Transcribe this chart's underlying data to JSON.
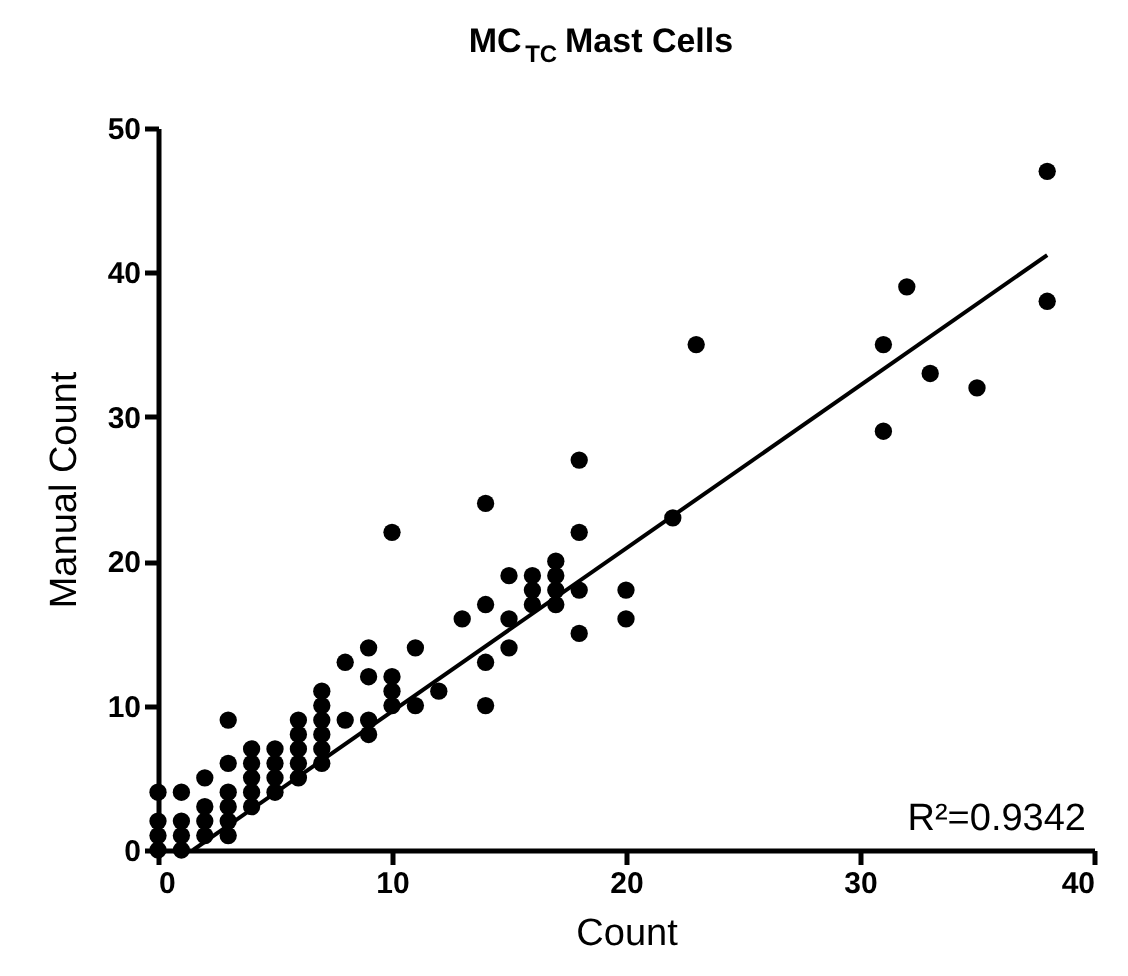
{
  "chart_data": {
    "type": "scatter",
    "title": "MC$_{TC}$ Mast Cells",
    "xlabel": "Count",
    "ylabel": "Manual Count",
    "xlim": [
      0,
      40
    ],
    "ylim": [
      0,
      50
    ],
    "xticks": [
      0,
      10,
      20,
      30,
      40
    ],
    "yticks": [
      0,
      10,
      20,
      30,
      40,
      50
    ],
    "marker": "circle",
    "annotations": [
      "R²=0.9342"
    ],
    "series": [
      {
        "color": "#000000",
        "x": [
          0,
          0,
          0,
          0,
          1,
          1,
          1,
          1,
          2,
          2,
          2,
          2,
          3,
          3,
          3,
          3,
          3,
          3,
          4,
          4,
          4,
          4,
          4,
          5,
          5,
          5,
          5,
          6,
          6,
          6,
          6,
          6,
          7,
          7,
          7,
          7,
          7,
          7,
          8,
          8,
          9,
          9,
          9,
          9,
          10,
          10,
          10,
          10,
          11,
          11,
          12,
          13,
          14,
          14,
          14,
          14,
          15,
          15,
          15,
          16,
          16,
          16,
          17,
          17,
          17,
          17,
          18,
          18,
          18,
          18,
          20,
          20,
          22,
          23,
          31,
          31,
          32,
          33,
          35,
          38,
          38
        ],
        "values": [
          0,
          1,
          2,
          4,
          0,
          1,
          2,
          4,
          1,
          2,
          3,
          5,
          1,
          2,
          3,
          4,
          6,
          9,
          3,
          4,
          5,
          6,
          7,
          4,
          5,
          6,
          7,
          5,
          6,
          7,
          8,
          9,
          6,
          7,
          8,
          9,
          10,
          11,
          9,
          13,
          8,
          9,
          12,
          14,
          10,
          11,
          12,
          22,
          10,
          14,
          11,
          16,
          10,
          13,
          17,
          24,
          14,
          16,
          19,
          17,
          18,
          19,
          17,
          18,
          19,
          20,
          15,
          18,
          22,
          27,
          16,
          18,
          23,
          35,
          29,
          35,
          39,
          33,
          32,
          38,
          47
        ]
      },
      {
        "type": "line",
        "color": "#000000",
        "x": [
          1.5,
          38
        ],
        "values": [
          0,
          41.2
        ],
        "marker": "none",
        "line_style": "solid"
      }
    ]
  }
}
